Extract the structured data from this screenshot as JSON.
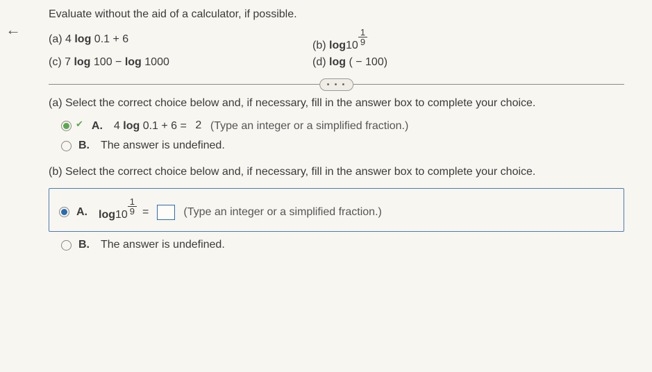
{
  "nav": {
    "back": "←"
  },
  "prompt": "Evaluate without the aid of a calculator, if possible.",
  "problems": {
    "a": {
      "label": "(a)",
      "expr_prefix": "4 ",
      "expr_mid": "log",
      "expr_suffix": " 0.1 + 6"
    },
    "b": {
      "label": "(b)",
      "expr_prefix": "log",
      "base_text": " 10",
      "exp_num": "1",
      "exp_den": "9"
    },
    "c": {
      "label": "(c)",
      "expr": "7 log 100 − log 1000"
    },
    "d": {
      "label": "(d)",
      "expr": "log ( − 100)"
    }
  },
  "dots": "• • •",
  "part_a": {
    "intro": "(a) Select the correct choice below and, if necessary, fill in the answer box to complete your choice.",
    "choice_a": {
      "letter": "A.",
      "pre": "4 log 0.1 + 6 = ",
      "value": "2",
      "hint": "  (Type an integer or a simplified fraction.)"
    },
    "choice_b": {
      "letter": "B.",
      "text": "The answer is undefined."
    }
  },
  "part_b": {
    "intro": "(b) Select the correct choice below and, if necessary, fill in the answer box to complete your choice.",
    "choice_a": {
      "letter": "A.",
      "log_text": "log 10",
      "exp_num": "1",
      "exp_den": "9",
      "equals": " = ",
      "hint": "(Type an integer or a simplified fraction.)"
    },
    "choice_b": {
      "letter": "B.",
      "text": "The answer is undefined."
    }
  }
}
